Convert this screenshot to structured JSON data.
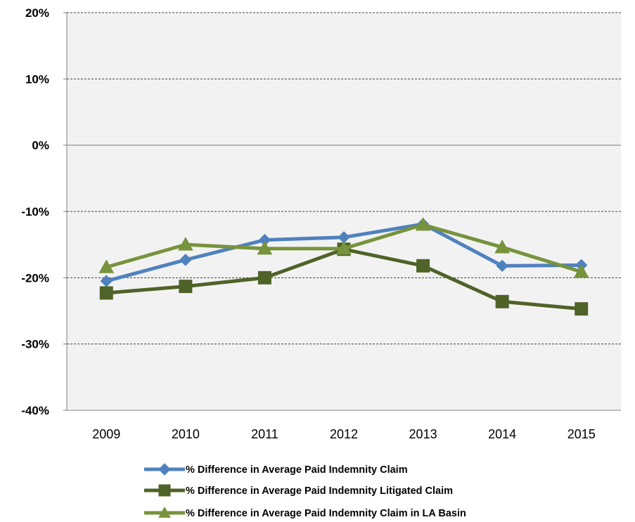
{
  "chart_data": {
    "type": "line",
    "title": "",
    "xlabel": "",
    "ylabel": "",
    "categories": [
      "2009",
      "2010",
      "2011",
      "2012",
      "2013",
      "2014",
      "2015"
    ],
    "ylim": [
      -40,
      20
    ],
    "yticks": [
      20,
      10,
      0,
      -10,
      -20,
      -30,
      -40
    ],
    "ytick_labels": [
      "20%",
      "10%",
      "0%",
      "-10%",
      "-20%",
      "-30%",
      "-40%"
    ],
    "grid": "horizontal dashed",
    "legend_position": "bottom",
    "series": [
      {
        "name": "% Difference in Average Paid Indemnity Claim",
        "color": "#4f81bd",
        "marker": "diamond",
        "values": [
          -20.5,
          -17.3,
          -14.3,
          -13.9,
          -11.9,
          -18.2,
          -18.1
        ]
      },
      {
        "name": "% Difference in Average Paid Indemnity Litigated Claim",
        "color": "#4f6228",
        "marker": "square",
        "values": [
          -22.3,
          -21.3,
          -20.0,
          -15.7,
          -18.2,
          -23.6,
          -24.7
        ]
      },
      {
        "name": "% Difference in Average Paid Indemnity Claim in LA Basin",
        "color": "#77933c",
        "marker": "triangle",
        "values": [
          -18.4,
          -15.0,
          -15.6,
          -15.6,
          -12.0,
          -15.4,
          -19.1
        ]
      }
    ]
  }
}
